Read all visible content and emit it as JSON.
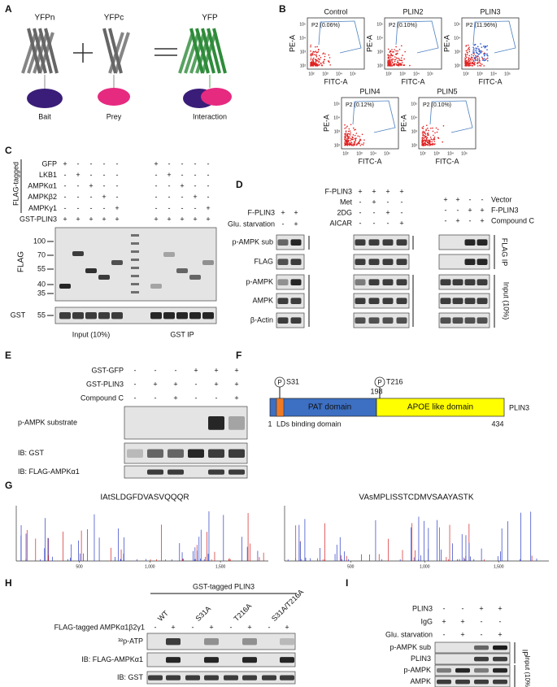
{
  "A": {
    "label": "A",
    "proteins": [
      "YFPn",
      "YFPc",
      "YFP"
    ],
    "roles": [
      "Bait",
      "Prey",
      "Interaction"
    ]
  },
  "B": {
    "label": "B",
    "y_label": "PE-A",
    "x_label": "FITC-A",
    "ticks": [
      "10²",
      "10³",
      "10⁴",
      "10⁵"
    ],
    "plots": [
      {
        "title": "Control",
        "gate": "P2 (0.06%)"
      },
      {
        "title": "PLIN2",
        "gate": "P2 (0.10%)"
      },
      {
        "title": "PLIN3",
        "gate": "P2 (11.96%)"
      },
      {
        "title": "PLIN4",
        "gate": "P2 (0.12%)"
      },
      {
        "title": "PLIN5",
        "gate": "P2 (0.10%)"
      }
    ]
  },
  "C": {
    "label": "C",
    "group_label": "FLAG-tagged",
    "conditions": [
      {
        "name": "GFP",
        "signs": [
          "+",
          "-",
          "-",
          "-",
          "-",
          "+",
          "-",
          "-",
          "-",
          "-"
        ]
      },
      {
        "name": "LKB1",
        "signs": [
          "-",
          "+",
          "-",
          "-",
          "-",
          "-",
          "+",
          "-",
          "-",
          "-"
        ]
      },
      {
        "name": "AMPKα1",
        "signs": [
          "-",
          "-",
          "+",
          "-",
          "-",
          "-",
          "-",
          "+",
          "-",
          "-"
        ]
      },
      {
        "name": "AMPKβ2",
        "signs": [
          "-",
          "-",
          "-",
          "+",
          "-",
          "-",
          "-",
          "-",
          "+",
          "-"
        ]
      },
      {
        "name": "AMPKγ1",
        "signs": [
          "-",
          "-",
          "-",
          "-",
          "+",
          "-",
          "-",
          "-",
          "-",
          "+"
        ]
      },
      {
        "name": "GST-PLIN3",
        "signs": [
          "+",
          "+",
          "+",
          "+",
          "+",
          "+",
          "+",
          "+",
          "+",
          "+"
        ]
      }
    ],
    "blots": [
      {
        "name": "FLAG",
        "markers": [
          100,
          70,
          55,
          40,
          35
        ]
      },
      {
        "name": "GST",
        "markers": [
          55
        ]
      }
    ],
    "groups": [
      "Input (10%)",
      "GST IP"
    ]
  },
  "D": {
    "label": "D",
    "left": {
      "conditions": [
        {
          "name": "F-PLIN3",
          "signs": [
            "+",
            "+"
          ]
        },
        {
          "name": "Glu. starvation",
          "signs": [
            "-",
            "+"
          ]
        }
      ],
      "blots": [
        "p-AMPK sub",
        "FLAG",
        "p-AMPK",
        "AMPK",
        "β-Actin"
      ]
    },
    "middle": {
      "conditions": [
        {
          "name": "F-PLIN3",
          "signs": [
            "+",
            "+",
            "+",
            "+"
          ]
        },
        {
          "name": "Met",
          "signs": [
            "-",
            "+",
            "-",
            "-"
          ]
        },
        {
          "name": "2DG",
          "signs": [
            "-",
            "-",
            "+",
            "-"
          ]
        },
        {
          "name": "AICAR",
          "signs": [
            "-",
            "-",
            "-",
            "+"
          ]
        }
      ]
    },
    "right": {
      "conditions": [
        {
          "name": "Vector",
          "signs": [
            "+",
            "+",
            "-",
            "-"
          ]
        },
        {
          "name": "F-PLIN3",
          "signs": [
            "-",
            "-",
            "+",
            "+"
          ]
        },
        {
          "name": "Compound C",
          "signs": [
            "-",
            "+",
            "-",
            "+"
          ]
        }
      ],
      "sections": [
        "FLAG IP",
        "Input (10%)"
      ]
    }
  },
  "E": {
    "label": "E",
    "conditions": [
      {
        "name": "GST-GFP",
        "signs": [
          "-",
          "-",
          "-",
          "+",
          "+",
          "+"
        ]
      },
      {
        "name": "GST-PLIN3",
        "signs": [
          "-",
          "+",
          "+",
          "-",
          "+",
          "+"
        ]
      },
      {
        "name": "Compound C",
        "signs": [
          "-",
          "-",
          "+",
          "-",
          "-",
          "+"
        ]
      }
    ],
    "blots": [
      "p-AMPK substrate",
      "IB: GST",
      "IB: FLAG-AMPKα1"
    ]
  },
  "F": {
    "label": "F",
    "protein": "PLIN3",
    "sites": [
      {
        "symbol": "P",
        "name": "S31"
      },
      {
        "symbol": "P",
        "name": "T216"
      }
    ],
    "domains": [
      "PAT domain",
      "APOE like domain",
      "LDs binding domain"
    ],
    "boundaries": [
      1,
      198,
      434
    ]
  },
  "G": {
    "label": "G",
    "spectra": [
      {
        "peptide": "IAtSLDGFDVASVQQQR"
      },
      {
        "peptide": "VAsMPLISSTCDMVSAAYASTK"
      }
    ],
    "ticks": [
      "500",
      "1,000",
      "1,500"
    ]
  },
  "H": {
    "label": "H",
    "header": "GST-tagged PLIN3",
    "variants": [
      "WT",
      "S31A",
      "T216A",
      "S31A/T216A"
    ],
    "conditions": [
      {
        "name": "FLAG-tagged AMPKα1β2γ1",
        "signs": [
          "-",
          "+",
          "-",
          "+",
          "-",
          "+",
          "-",
          "+"
        ]
      }
    ],
    "blots": [
      "³²p-ATP",
      "IB: FLAG-AMPKα1",
      "IB: GST"
    ]
  },
  "I": {
    "label": "I",
    "conditions": [
      {
        "name": "PLIN3",
        "signs": [
          "-",
          "-",
          "+",
          "+"
        ]
      },
      {
        "name": "IgG",
        "signs": [
          "+",
          "+",
          "-",
          "-"
        ]
      },
      {
        "name": "Glu. starvation",
        "signs": [
          "-",
          "+",
          "-",
          "+"
        ]
      }
    ],
    "blots": [
      "p-AMPK sub",
      "PLIN3",
      "p-AMPK",
      "AMPK"
    ],
    "sections": [
      "IP",
      "Input (10%)"
    ]
  }
}
